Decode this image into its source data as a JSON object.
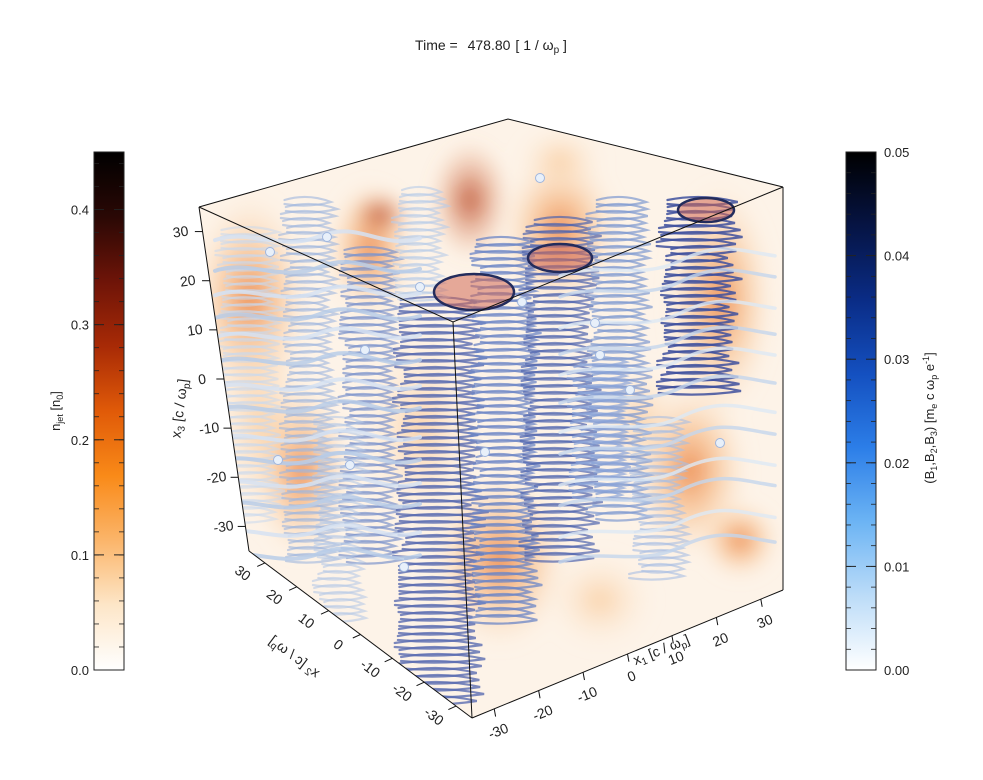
{
  "chart_data": {
    "type": "volume-render-3d",
    "title": {
      "prefix": "Time = ",
      "value": "478.80",
      "unit": "[ 1 / ω",
      "unit_sub": "p",
      "unit_end": " ]"
    },
    "left_colorbar": {
      "label": "n",
      "label_sub": "jet",
      "label_unit": " [n",
      "label_unit_sub": "0",
      "label_end": "]",
      "range": [
        0.0,
        0.45
      ],
      "ticks": [
        "0.0",
        "0.1",
        "0.2",
        "0.3",
        "0.4"
      ],
      "tick_values": [
        0.0,
        0.1,
        0.2,
        0.3,
        0.4
      ],
      "colormap": [
        "#ffffff",
        "#fde6c8",
        "#fbb56a",
        "#f98a18",
        "#e05a08",
        "#a82a06",
        "#6e1408",
        "#2a0805",
        "#000000"
      ]
    },
    "right_colorbar": {
      "label_parts": [
        "(B",
        "1",
        ",B",
        "2",
        ",B",
        "3",
        ") [m",
        "e",
        " c ω",
        "p",
        " e",
        "-1",
        "]"
      ],
      "range": [
        0.0,
        0.05
      ],
      "ticks": [
        "0.00",
        "0.01",
        "0.02",
        "0.03",
        "0.04",
        "0.05"
      ],
      "tick_values": [
        0.0,
        0.01,
        0.02,
        0.03,
        0.04,
        0.05
      ],
      "colormap": [
        "#ffffff",
        "#bcdcf8",
        "#6cb4f4",
        "#2c7ee8",
        "#1450c0",
        "#0a2c86",
        "#061444",
        "#000000"
      ]
    },
    "axes": {
      "x1": {
        "label": "x",
        "label_sub": "1",
        "label_unit": " [c / ω",
        "label_unit_sub": "p",
        "label_end": "]",
        "ticks": [
          "-30",
          "-20",
          "-10",
          "0",
          "10",
          "20",
          "30"
        ],
        "tick_values": [
          -30,
          -20,
          -10,
          0,
          10,
          20,
          30
        ]
      },
      "x2": {
        "label": "x",
        "label_sub": "2",
        "label_unit": " [c / ω",
        "label_unit_sub": "p",
        "label_end": "]",
        "ticks": [
          "-30",
          "-20",
          "-10",
          "0",
          "10",
          "20",
          "30"
        ],
        "tick_values": [
          -30,
          -20,
          -10,
          0,
          10,
          20,
          30
        ]
      },
      "x3": {
        "label": "x",
        "label_sub": "3",
        "label_unit": " [c / ω",
        "label_unit_sub": "p",
        "label_end": "]",
        "ticks": [
          "-30",
          "-20",
          "-10",
          "0",
          "10",
          "20",
          "30"
        ],
        "tick_values": [
          -30,
          -20,
          -10,
          0,
          10,
          20,
          30
        ]
      },
      "range": [
        -35,
        35
      ]
    },
    "colors": {
      "density_glow": "#f08a2a",
      "density_dark": "#c8501a",
      "field_light": "#c8dcf0",
      "field_mid": "#6c8ccc",
      "field_dark": "#2c3c8c",
      "box_line": "#111111"
    }
  }
}
